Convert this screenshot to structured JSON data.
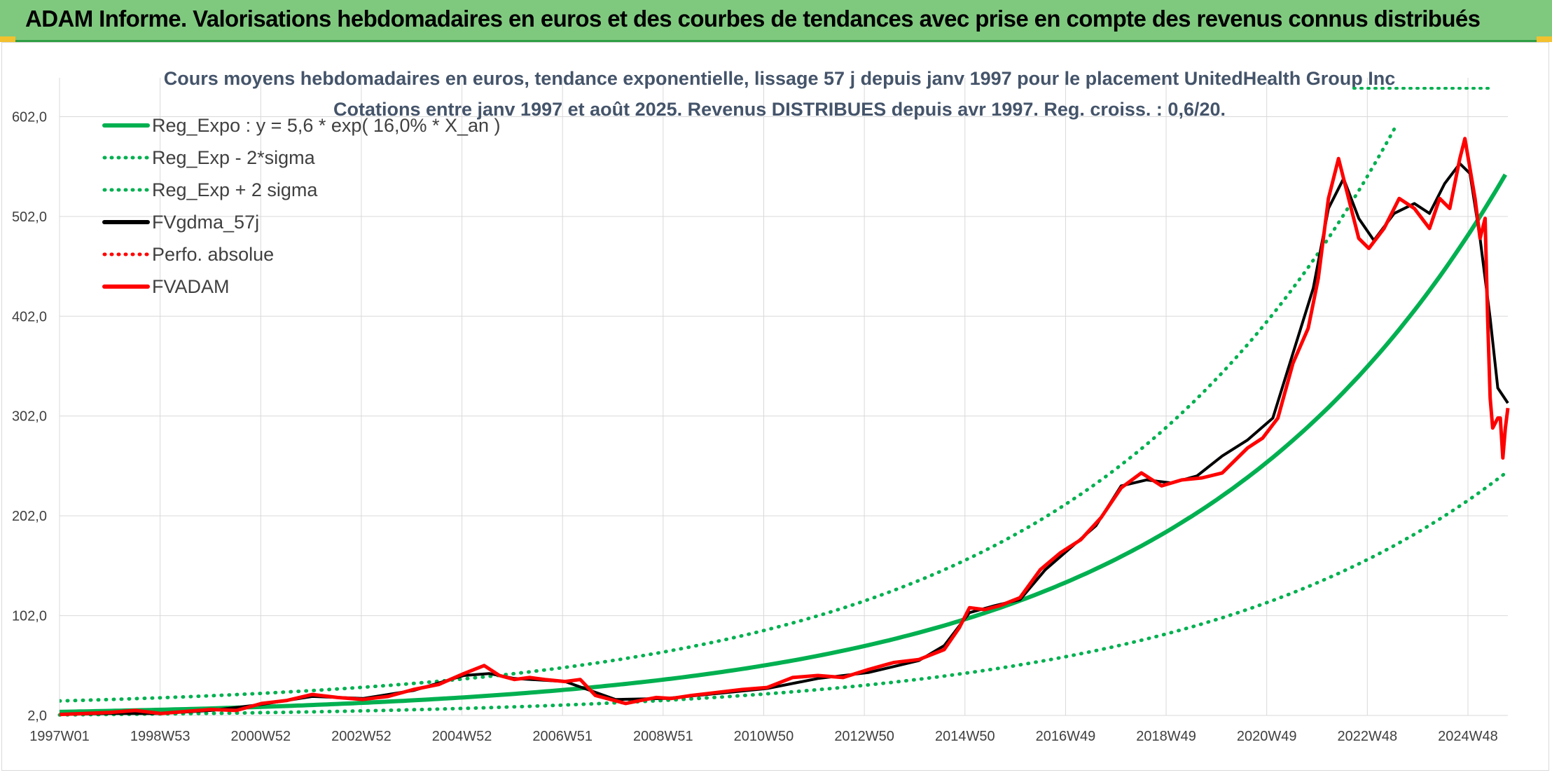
{
  "banner": {
    "title": "ADAM Informe. Valorisations hebdomadaires en euros et des courbes de tendances avec prise en compte des revenus connus distribués"
  },
  "colors": {
    "banner_bg": "#7fc97f",
    "reg_green": "#00b050",
    "black": "#000000",
    "red": "#ff0000"
  },
  "chart_data": {
    "type": "line",
    "title_line1": "Cours moyens hebdomadaires en euros, tendance exponentielle, lissage 57 j depuis janv 1997 pour le placement UnitedHealth Group Inc",
    "title_line2": "Cotations entre janv 1997 et août 2025. Revenus DISTRIBUES depuis avr 1997. Reg. croiss. : 0,6/20.",
    "xlabel": "",
    "ylabel": "",
    "x_ticks": [
      "1997W01",
      "1998W53",
      "2000W52",
      "2002W52",
      "2004W52",
      "2006W51",
      "2008W51",
      "2010W50",
      "2012W50",
      "2014W50",
      "2016W49",
      "2018W49",
      "2020W49",
      "2022W48",
      "2024W48"
    ],
    "y_ticks": [
      "2,0",
      "102,0",
      "202,0",
      "302,0",
      "402,0",
      "502,0",
      "602,0"
    ],
    "ylim": [
      2,
      662
    ],
    "xlim": [
      1997.0,
      2025.65
    ],
    "grid": "on",
    "legend_position": "top-left",
    "legend": [
      {
        "label": "Reg_Expo : y = 5,6 * exp( 16,0% *  X_an )",
        "color": "#00b050",
        "style": "solid"
      },
      {
        "label": "Reg_Exp - 2*sigma",
        "color": "#00b050",
        "style": "dotted"
      },
      {
        "label": "Reg_Exp + 2 sigma",
        "color": "#00b050",
        "style": "dotted"
      },
      {
        "label": "FVgdma_57j",
        "color": "#000000",
        "style": "solid"
      },
      {
        "label": "Perfo. absolue",
        "color": "#ff0000",
        "style": "dotted"
      },
      {
        "label": "FVADAM",
        "color": "#ff0000",
        "style": "solid"
      }
    ],
    "regression": {
      "a": 5.6,
      "b": 0.16,
      "start_year": 1997.0,
      "minus_factor": 0.45,
      "plus_factor": 1.52
    },
    "series": [
      {
        "name": "FVADAM",
        "x": [
          1997.0,
          1997.5,
          1998.0,
          1998.5,
          1999.0,
          1999.5,
          2000.0,
          2000.5,
          2001.0,
          2001.5,
          2002.0,
          2002.5,
          2003.0,
          2003.5,
          2004.0,
          2004.5,
          2005.0,
          2005.4,
          2005.7,
          2006.0,
          2006.3,
          2006.6,
          2007.0,
          2007.3,
          2007.6,
          2007.9,
          2008.2,
          2008.5,
          2008.8,
          2009.1,
          2009.5,
          2010.0,
          2010.5,
          2011.0,
          2011.5,
          2012.0,
          2012.5,
          2013.0,
          2013.5,
          2014.0,
          2014.5,
          2014.8,
          2015.0,
          2015.3,
          2015.6,
          2016.0,
          2016.4,
          2016.8,
          2017.2,
          2017.6,
          2018.0,
          2018.4,
          2018.8,
          2019.2,
          2019.6,
          2020.0,
          2020.2,
          2020.5,
          2020.8,
          2021.1,
          2021.4,
          2021.7,
          2021.9,
          2022.1,
          2022.3,
          2022.5,
          2022.7,
          2022.9,
          2023.2,
          2023.5,
          2023.8,
          2024.1,
          2024.3,
          2024.5,
          2024.7,
          2024.8,
          2024.9,
          2025.0,
          2025.1,
          2025.2,
          2025.25,
          2025.3,
          2025.35,
          2025.4,
          2025.45,
          2025.5,
          2025.55,
          2025.6,
          2025.65
        ],
        "values": [
          3,
          4,
          5,
          7,
          4,
          6,
          8,
          7,
          14,
          17,
          23,
          20,
          18,
          21,
          28,
          33,
          44,
          52,
          42,
          38,
          40,
          38,
          36,
          38,
          22,
          18,
          14,
          17,
          20,
          19,
          22,
          25,
          28,
          30,
          40,
          42,
          40,
          48,
          55,
          58,
          68,
          90,
          110,
          108,
          112,
          120,
          148,
          165,
          178,
          200,
          230,
          245,
          232,
          238,
          240,
          245,
          255,
          270,
          280,
          300,
          355,
          390,
          440,
          520,
          560,
          520,
          480,
          470,
          490,
          520,
          510,
          490,
          520,
          510,
          560,
          580,
          550,
          520,
          480,
          500,
          400,
          320,
          290,
          295,
          300,
          300,
          260,
          290,
          310
        ]
      },
      {
        "name": "FVgdma_57j",
        "x": [
          1997.0,
          1998.0,
          1999.0,
          2000.0,
          2001.0,
          2002.0,
          2003.0,
          2004.0,
          2005.0,
          2005.5,
          2006.0,
          2007.0,
          2008.0,
          2009.0,
          2010.0,
          2011.0,
          2012.0,
          2013.0,
          2014.0,
          2014.5,
          2015.0,
          2015.5,
          2016.0,
          2016.5,
          2017.0,
          2017.5,
          2018.0,
          2018.5,
          2019.0,
          2019.5,
          2020.0,
          2020.5,
          2021.0,
          2021.4,
          2021.8,
          2022.1,
          2022.4,
          2022.7,
          2023.0,
          2023.4,
          2023.8,
          2024.1,
          2024.4,
          2024.7,
          2024.9,
          2025.1,
          2025.3,
          2025.45,
          2025.65
        ],
        "values": [
          3,
          4,
          4,
          7,
          13,
          21,
          19,
          27,
          42,
          44,
          39,
          36,
          18,
          19,
          24,
          29,
          39,
          45,
          57,
          72,
          105,
          112,
          118,
          148,
          170,
          192,
          232,
          238,
          235,
          242,
          262,
          278,
          300,
          365,
          430,
          510,
          540,
          500,
          478,
          505,
          515,
          505,
          535,
          555,
          545,
          480,
          400,
          330,
          315
        ]
      }
    ]
  }
}
